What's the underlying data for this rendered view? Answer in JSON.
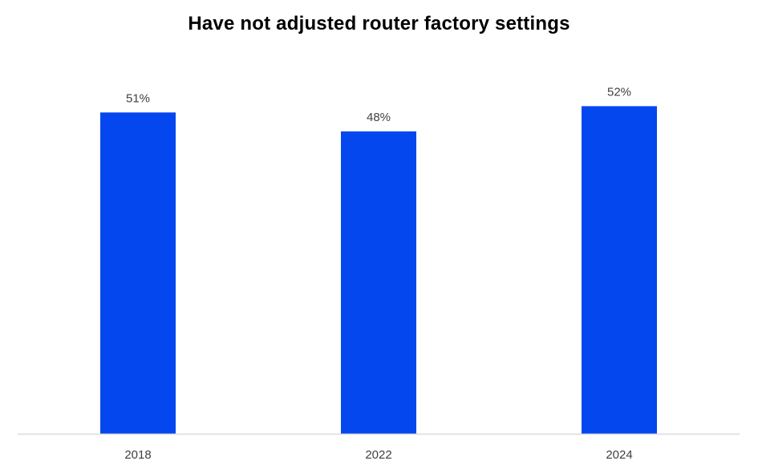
{
  "chart_data": {
    "type": "bar",
    "title": "Have not adjusted router factory settings",
    "categories": [
      "2018",
      "2022",
      "2024"
    ],
    "values": [
      51,
      48,
      52
    ],
    "data_labels": [
      "51%",
      "48%",
      "52%"
    ],
    "unit": "%",
    "xlabel": "",
    "ylabel": "",
    "ylim": [
      0,
      56
    ],
    "grid": false,
    "legend": "none",
    "bar_color": "#0447EF",
    "axis_color": "#D9D9D9",
    "label_color": "#404040"
  }
}
